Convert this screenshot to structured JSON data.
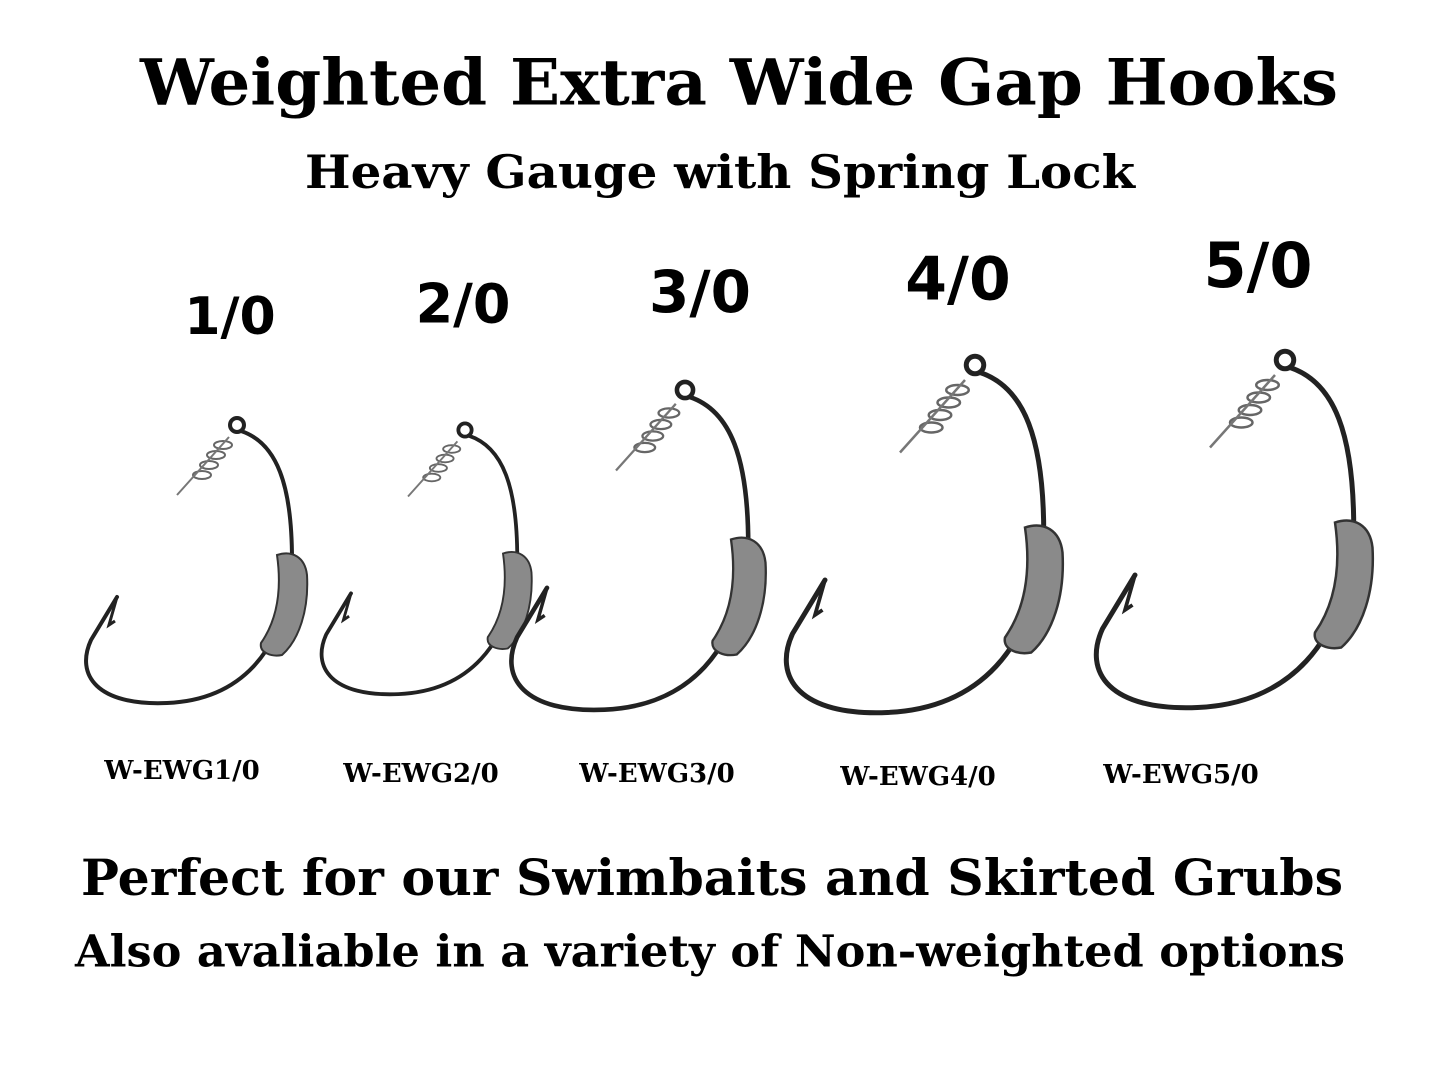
{
  "header": {
    "title": "Weighted Extra Wide Gap Hooks",
    "subtitle": "Heavy Gauge with Spring Lock"
  },
  "hooks": [
    {
      "size": "1/0",
      "code": "W-EWG1/0"
    },
    {
      "size": "2/0",
      "code": "W-EWG2/0"
    },
    {
      "size": "3/0",
      "code": "W-EWG3/0"
    },
    {
      "size": "4/0",
      "code": "W-EWG4/0"
    },
    {
      "size": "5/0",
      "code": "W-EWG5/0"
    }
  ],
  "footer": {
    "line1": "Perfect for our Swimbaits and Skirted Grubs",
    "line2": "Also avaliable in a variety of Non-weighted options"
  }
}
